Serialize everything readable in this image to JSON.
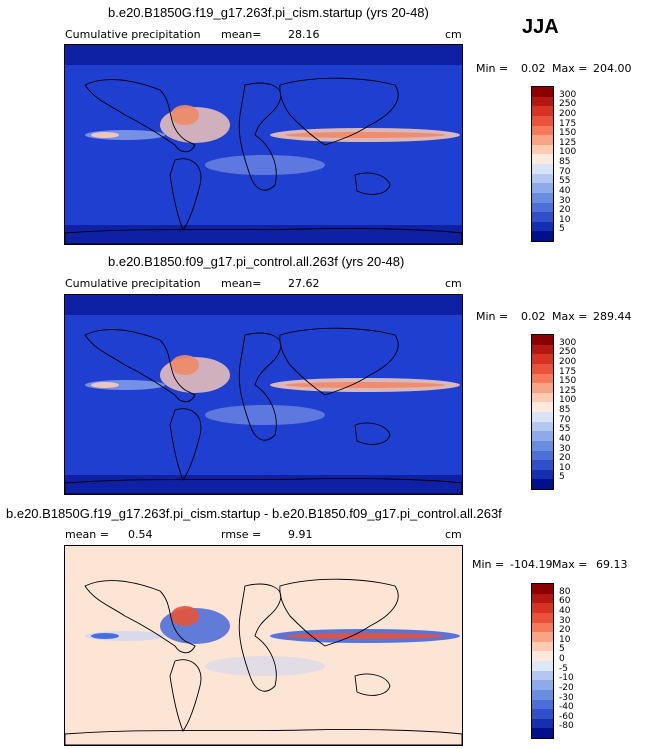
{
  "season": "JJA",
  "panels": [
    {
      "title": "b.e20.B1850G.f19_g17.263f.pi_cism.startup (yrs 20-48)",
      "left_label": "Cumulative precipitation",
      "mean_label": "mean=",
      "mean_value": "28.16",
      "units": "cm",
      "min_label": "Min =",
      "min_value": "0.02",
      "max_label": "Max =",
      "max_value": "204.00",
      "colorbar_labels": [
        "300",
        "250",
        "200",
        "175",
        "150",
        "125",
        "100",
        "85",
        "70",
        "55",
        "40",
        "30",
        "20",
        "10",
        "5"
      ],
      "colorbar_colors": [
        "#8b0000",
        "#b2180f",
        "#d73224",
        "#e8523a",
        "#f47a5a",
        "#f9a585",
        "#fccbb2",
        "#fde9dd",
        "#d8e3f7",
        "#b3c8f0",
        "#8eaae8",
        "#6a8de0",
        "#4c70d8",
        "#2f50c8",
        "#1430b0",
        "#000f8c"
      ],
      "map": {
        "ocean": "#1f3fd0",
        "land": "#2a4ad8",
        "polar": "#0a1a9a",
        "highlights": [
          "#f08a66",
          "#fbcdb7",
          "#9bb4ef"
        ]
      }
    },
    {
      "title": "b.e20.B1850.f09_g17.pi_control.all.263f (yrs 20-48)",
      "left_label": "Cumulative precipitation",
      "mean_label": "mean=",
      "mean_value": "27.62",
      "units": "cm",
      "min_label": "Min =",
      "min_value": "0.02",
      "max_label": "Max =",
      "max_value": "289.44",
      "colorbar_labels": [
        "300",
        "250",
        "200",
        "175",
        "150",
        "125",
        "100",
        "85",
        "70",
        "55",
        "40",
        "30",
        "20",
        "10",
        "5"
      ],
      "colorbar_colors": [
        "#8b0000",
        "#b2180f",
        "#d73224",
        "#e8523a",
        "#f47a5a",
        "#f9a585",
        "#fccbb2",
        "#fde9dd",
        "#d8e3f7",
        "#b3c8f0",
        "#8eaae8",
        "#6a8de0",
        "#4c70d8",
        "#2f50c8",
        "#1430b0",
        "#000f8c"
      ],
      "map": {
        "ocean": "#1f3fd0",
        "land": "#2a4ad8",
        "polar": "#0a1a9a",
        "highlights": [
          "#f08a66",
          "#fbcdb7",
          "#9bb4ef"
        ]
      }
    },
    {
      "title": "b.e20.B1850G.f19_g17.263f.pi_cism.startup - b.e20.B1850.f09_g17.pi_control.all.263f",
      "mean_label": "mean =",
      "mean_value": "0.54",
      "rmse_label": "rmse =",
      "rmse_value": "9.91",
      "units": "cm",
      "min_label": "Min =",
      "min_value": "-104.19",
      "max_label": "Max =",
      "max_value": "69.13",
      "colorbar_labels": [
        "80",
        "60",
        "40",
        "30",
        "20",
        "10",
        "5",
        "0",
        "-5",
        "-10",
        "-20",
        "-30",
        "-40",
        "-60",
        "-80"
      ],
      "colorbar_colors": [
        "#8b0000",
        "#b2180f",
        "#d73224",
        "#e8523a",
        "#f47a5a",
        "#f9a585",
        "#fccbb2",
        "#fde9dd",
        "#dde7f8",
        "#b3c8f0",
        "#8eaae8",
        "#6a8de0",
        "#4c70d8",
        "#2f50c8",
        "#1430b0",
        "#000f8c"
      ],
      "map": {
        "ocean": "#fde5d6",
        "land": "#fde5d6",
        "polar": "#fde5d6",
        "highlights": [
          "#e8523a",
          "#3a60d8",
          "#c8d6f4"
        ]
      }
    }
  ]
}
